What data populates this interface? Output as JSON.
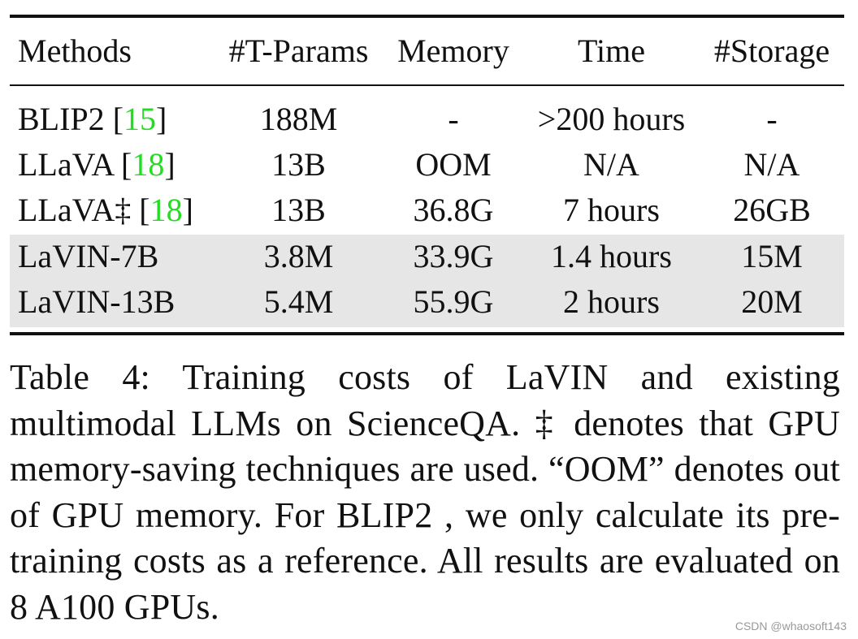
{
  "table": {
    "headers": [
      "Methods",
      "#T-Params",
      "Memory",
      "Time",
      "#Storage"
    ],
    "rows": [
      {
        "method": "BLIP2",
        "ref": "15",
        "params": "188M",
        "memory": "-",
        "time": ">200 hours",
        "storage": "-",
        "highlighted": false
      },
      {
        "method": "LLaVA",
        "ref": "18",
        "params": "13B",
        "memory": "OOM",
        "time": "N/A",
        "storage": "N/A",
        "highlighted": false
      },
      {
        "method": "LLaVA‡",
        "ref": "18",
        "params": "13B",
        "memory": "36.8G",
        "time": "7 hours",
        "storage": "26GB",
        "highlighted": false
      },
      {
        "method": "LaVIN-7B",
        "ref": "",
        "params": "3.8M",
        "memory": "33.9G",
        "time": "1.4 hours",
        "storage": "15M",
        "highlighted": true
      },
      {
        "method": "LaVIN-13B",
        "ref": "",
        "params": "5.4M",
        "memory": "55.9G",
        "time": "2 hours",
        "storage": "20M",
        "highlighted": true
      }
    ],
    "citation_color": "#22dd22",
    "highlight_color": "#e6e6e6"
  },
  "caption": {
    "text": "Table 4: Training costs of LaVIN and existing multimodal LLMs on ScienceQA. ‡ denotes that GPU memory-saving techniques are used. “OOM” denotes out of GPU memory. For BLIP2 , we only calculate its pre-training costs as a reference. All results are evaluated on 8 A100 GPUs."
  },
  "watermark": "CSDN @whaosoft143"
}
